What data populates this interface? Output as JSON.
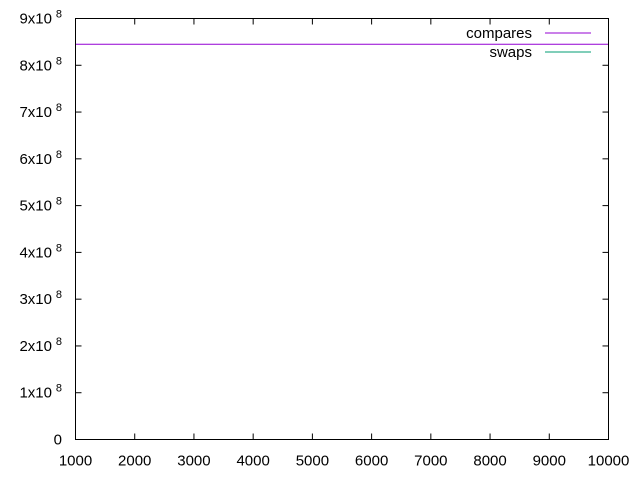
{
  "chart_data": {
    "type": "line",
    "title": "",
    "xlabel": "",
    "ylabel": "",
    "xlim": [
      1000,
      10000
    ],
    "ylim": [
      0,
      900000000
    ],
    "x_ticks": [
      1000,
      2000,
      3000,
      4000,
      5000,
      6000,
      7000,
      8000,
      9000,
      10000
    ],
    "x_tick_labels": [
      "1000",
      "2000",
      "3000",
      "4000",
      "5000",
      "6000",
      "7000",
      "8000",
      "9000",
      "10000"
    ],
    "y_ticks": [
      0,
      100000000,
      200000000,
      300000000,
      400000000,
      500000000,
      600000000,
      700000000,
      800000000,
      900000000
    ],
    "y_tick_labels": [
      {
        "mantissa": "0",
        "exp": ""
      },
      {
        "mantissa": "1x10",
        "exp": "8"
      },
      {
        "mantissa": "2x10",
        "exp": "8"
      },
      {
        "mantissa": "3x10",
        "exp": "8"
      },
      {
        "mantissa": "4x10",
        "exp": "8"
      },
      {
        "mantissa": "5x10",
        "exp": "8"
      },
      {
        "mantissa": "6x10",
        "exp": "8"
      },
      {
        "mantissa": "7x10",
        "exp": "8"
      },
      {
        "mantissa": "8x10",
        "exp": "8"
      },
      {
        "mantissa": "9x10",
        "exp": "8"
      }
    ],
    "grid": false,
    "legend_position": "top-right",
    "series": [
      {
        "name": "compares",
        "color": "#9400d3",
        "x": [
          1000,
          10000
        ],
        "y": [
          845000000,
          845000000
        ]
      },
      {
        "name": "swaps",
        "color": "#009e73",
        "x": [],
        "y": []
      }
    ]
  }
}
